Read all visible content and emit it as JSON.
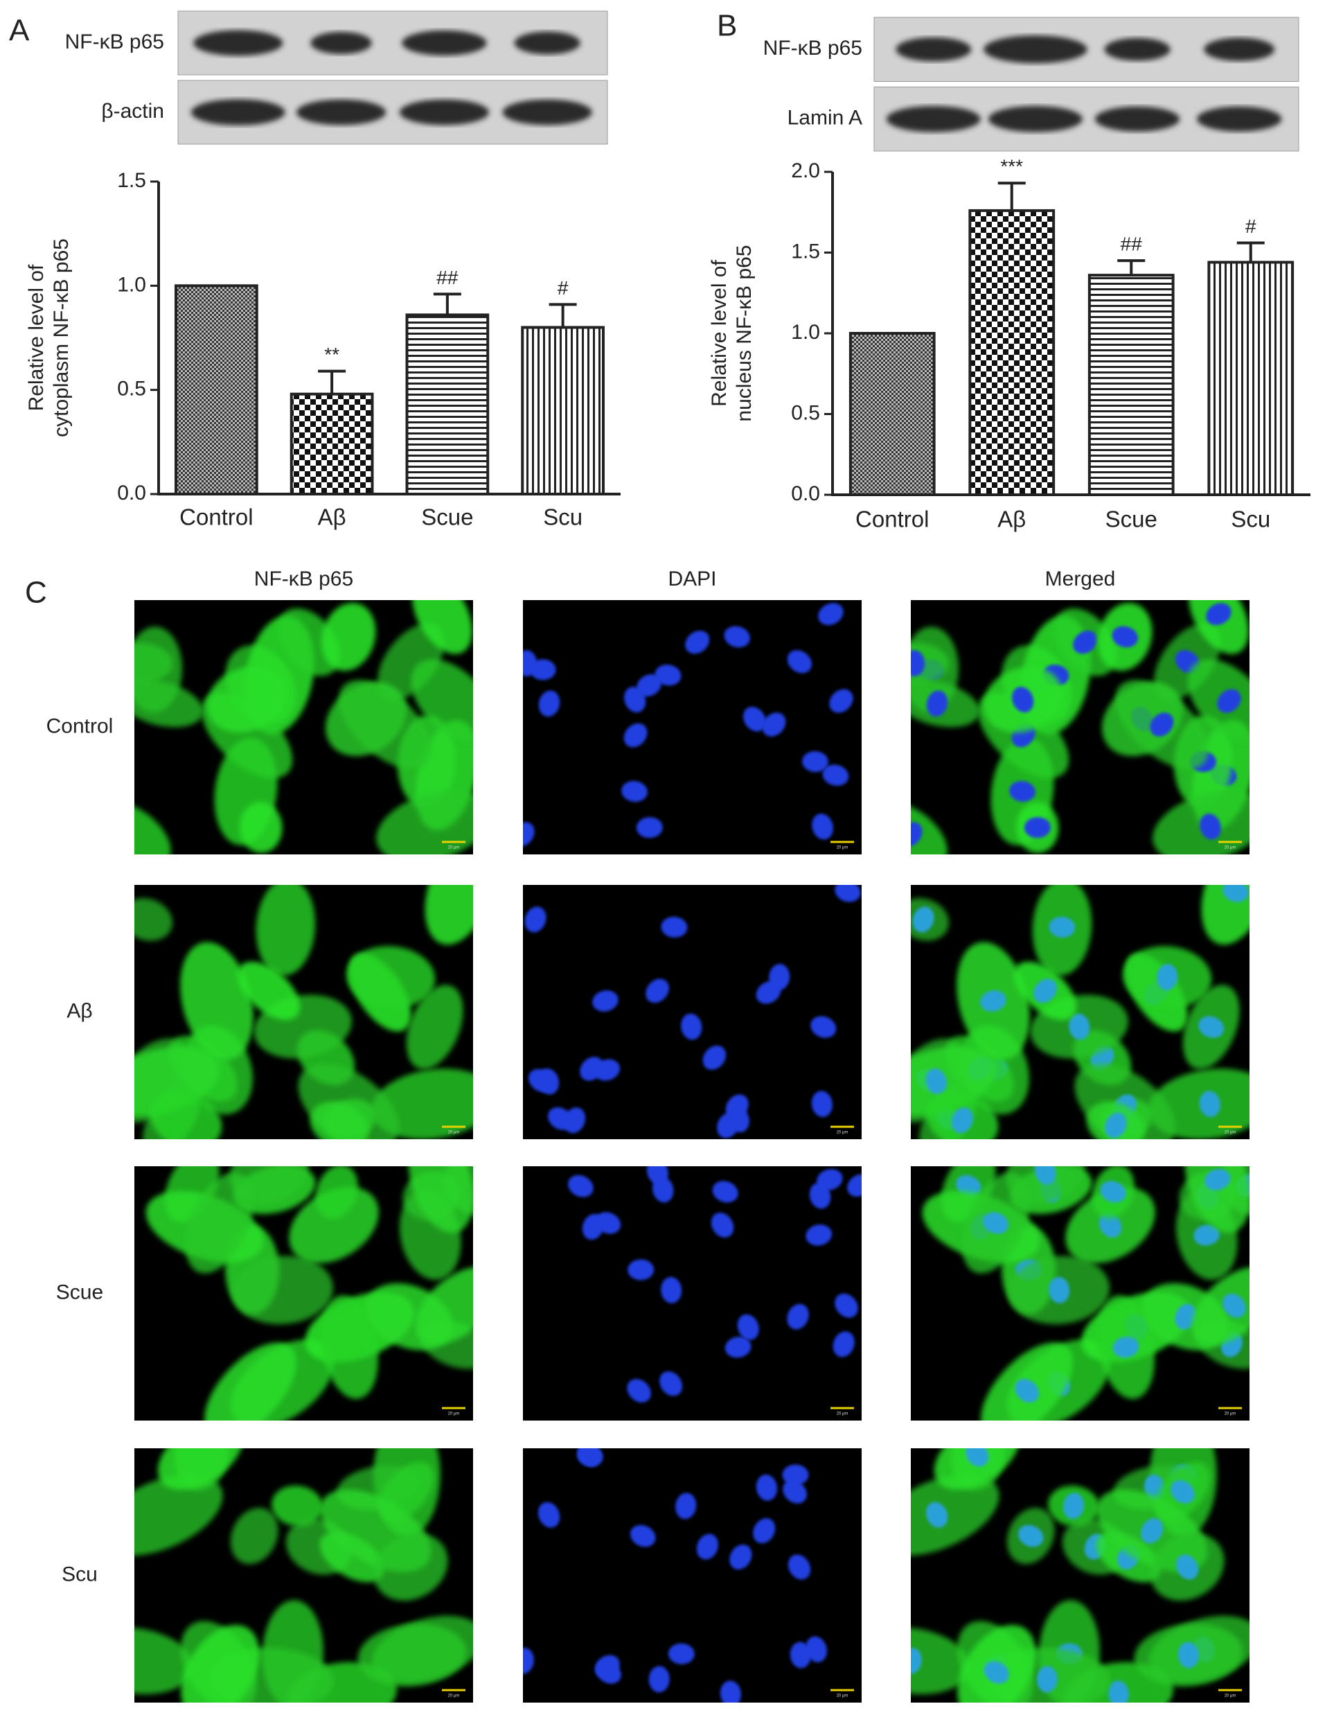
{
  "chart_data": [
    {
      "type": "bar",
      "categories": [
        "Control",
        "Aβ",
        "Scue",
        "Scu"
      ],
      "values": [
        1.0,
        0.48,
        0.86,
        0.8
      ],
      "errors": [
        null,
        0.11,
        0.1,
        0.11
      ],
      "annotations": [
        null,
        "**",
        "##",
        "#"
      ],
      "ylabel": [
        "Relative level of",
        "cytoplasm NF-κB p65"
      ],
      "ylim": [
        0,
        1.5
      ],
      "yticks": [
        {
          "value": 0,
          "label": "0.0"
        },
        0.5,
        {
          "value": 1,
          "label": "1.0"
        },
        1.5
      ],
      "patterns": [
        "fine-check",
        "check",
        "horizontal",
        "vertical"
      ],
      "color": "#222222"
    },
    {
      "type": "bar",
      "categories": [
        "Control",
        "Aβ",
        "Scue",
        "Scu"
      ],
      "values": [
        1.0,
        1.76,
        1.36,
        1.44
      ],
      "errors": [
        null,
        0.17,
        0.09,
        0.12
      ],
      "annotations": [
        null,
        "***",
        "##",
        "#"
      ],
      "ylabel": [
        "Relative level of",
        "nucleus NF-κB p65"
      ],
      "ylim": [
        0,
        2.0
      ],
      "yticks": [
        {
          "value": 0,
          "label": "0.0"
        },
        0.5,
        {
          "value": 1,
          "label": "1.0"
        },
        1.5,
        {
          "value": 2,
          "label": "2.0"
        }
      ],
      "patterns": [
        "fine-check",
        "check",
        "horizontal",
        "vertical"
      ],
      "color": "#222222"
    }
  ],
  "panel_labels": [
    "A",
    "B",
    "C"
  ],
  "blots": [
    {
      "rows": [
        "NF-κB p65",
        "β-actin"
      ]
    },
    {
      "rows": [
        "NF-κB p65",
        "Lamin A"
      ]
    }
  ],
  "microscopy": {
    "columns": [
      "NF-κB p65",
      "DAPI",
      "Merged"
    ],
    "rows": [
      "Control",
      "Aβ",
      "Scue",
      "Scu"
    ],
    "scale_bar": "20 μm"
  }
}
